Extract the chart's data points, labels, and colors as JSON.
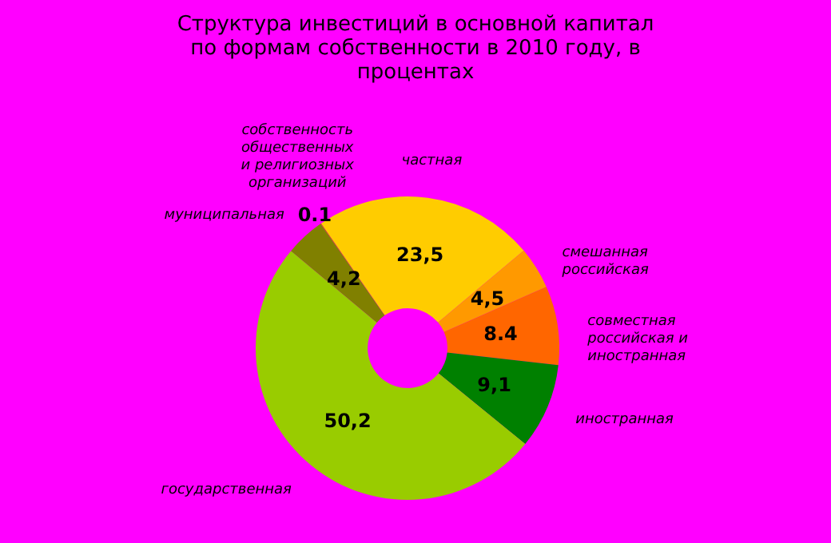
{
  "chart_data": {
    "type": "donut",
    "title": "Структура инвестиций в основной капитал\nпо формам собственности в 2010 году, в\nпроцентах",
    "categories": [
      "собственность\nобщественных\nи религиозных\nорганизаций",
      "частная",
      "смешанная\nроссийская",
      "совместная\nроссийская и\nиностранная",
      "иностранная",
      "государственная",
      "муниципальная"
    ],
    "values": [
      0.1,
      23.5,
      4.5,
      8.4,
      9.1,
      50.2,
      4.2
    ],
    "value_labels": [
      "0.1",
      "23,5",
      "4,5",
      "8.4",
      "9,1",
      "50,2",
      "4,2"
    ],
    "colors": [
      "#cc6600",
      "#ffcc00",
      "#ff9900",
      "#ff6600",
      "#008000",
      "#99cc00",
      "#808000"
    ]
  }
}
